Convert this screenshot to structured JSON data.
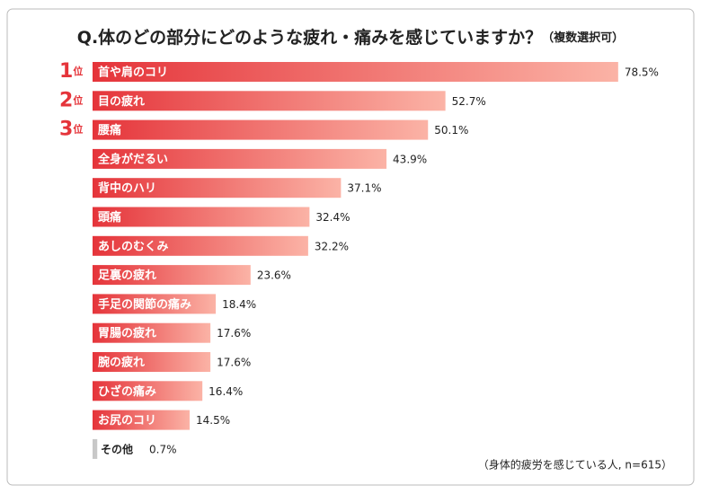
{
  "chart_data": {
    "type": "bar",
    "orientation": "horizontal",
    "title": "Q.体のどの部分にどのような疲れ・痛みを感じていますか？",
    "subtitle": "（複数選択可）",
    "note": "（身体的疲労を感じている人, n=615）",
    "ranks": [
      "1",
      "2",
      "3"
    ],
    "rank_suffix": "位",
    "categories": [
      "首や肩のコリ",
      "目の疲れ",
      "腰痛",
      "全身がだるい",
      "背中のハリ",
      "頭痛",
      "あしのむくみ",
      "足裏の疲れ",
      "手足の関節の痛み",
      "胃腸の疲れ",
      "腕の疲れ",
      "ひざの痛み",
      "お尻のコリ",
      "その他"
    ],
    "values": [
      78.5,
      52.7,
      50.1,
      43.9,
      37.1,
      32.4,
      32.2,
      23.6,
      18.4,
      17.6,
      17.6,
      16.4,
      14.5,
      0.7
    ],
    "value_labels": [
      "78.5%",
      "52.7%",
      "50.1%",
      "43.9%",
      "37.1%",
      "32.4%",
      "32.2%",
      "23.6%",
      "18.4%",
      "17.6%",
      "17.6%",
      "16.4%",
      "14.5%",
      "0.7%"
    ],
    "color": "#e5343a",
    "color_end": "#fbb3a6",
    "other_color": "#c8c8c8",
    "xlim": [
      0,
      80
    ]
  }
}
